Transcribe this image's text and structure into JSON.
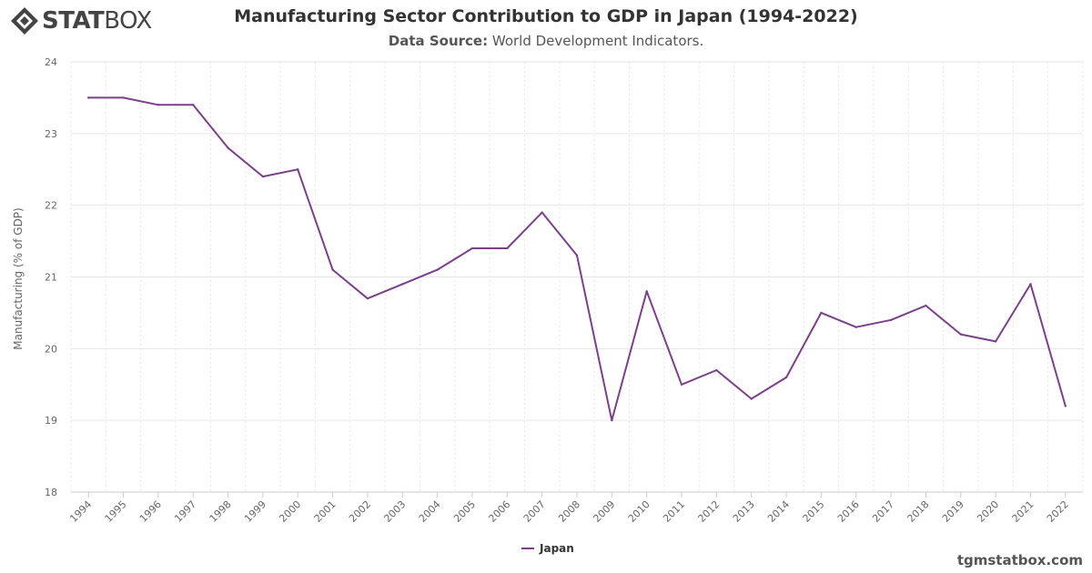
{
  "brand": {
    "logo_text_bold": "STAT",
    "logo_text_light": "BOX",
    "footer": "tgmstatbox.com"
  },
  "header": {
    "title": "Manufacturing Sector Contribution to GDP in Japan (1994-2022)",
    "subtitle_label": "Data Source:",
    "subtitle_value": "World Development Indicators."
  },
  "colors": {
    "series": "#7b3f8c",
    "grid": "#e6e6e6",
    "axis_text": "#666666"
  },
  "chart_data": {
    "type": "line",
    "x": [
      "1994",
      "1995",
      "1996",
      "1997",
      "1998",
      "1999",
      "2000",
      "2001",
      "2002",
      "2003",
      "2004",
      "2005",
      "2006",
      "2007",
      "2008",
      "2009",
      "2010",
      "2011",
      "2012",
      "2013",
      "2014",
      "2015",
      "2016",
      "2017",
      "2018",
      "2019",
      "2020",
      "2021",
      "2022"
    ],
    "series": [
      {
        "name": "Japan",
        "values": [
          23.5,
          23.5,
          23.4,
          23.4,
          22.8,
          22.4,
          22.5,
          21.1,
          20.7,
          20.9,
          21.1,
          21.4,
          21.4,
          21.9,
          21.3,
          19.0,
          20.8,
          19.5,
          19.7,
          19.3,
          19.6,
          20.5,
          20.3,
          20.4,
          20.6,
          20.2,
          20.1,
          20.9,
          19.2
        ]
      }
    ],
    "ylabel": "Manufacturing (% of GDP)",
    "ylim": [
      18,
      24
    ],
    "yticks": [
      18,
      19,
      20,
      21,
      22,
      23,
      24
    ],
    "grid": true,
    "legend": "bottom-center"
  }
}
